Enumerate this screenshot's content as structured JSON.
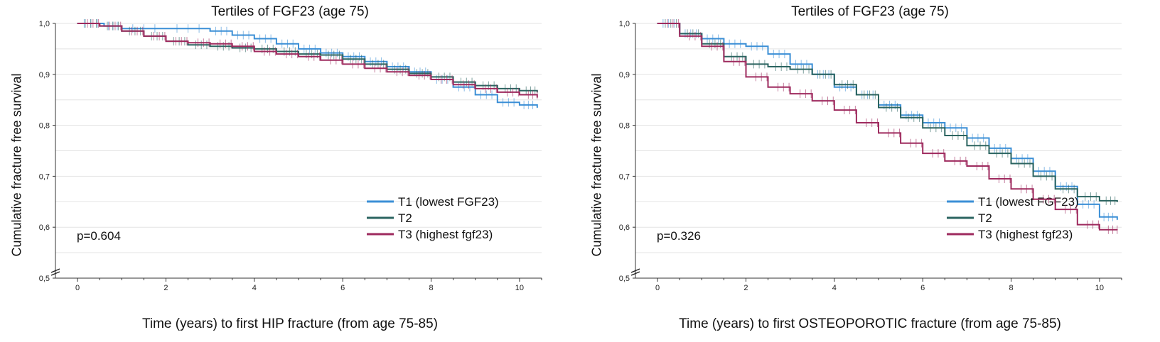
{
  "chart_data": [
    {
      "type": "line",
      "title": "Tertiles of FGF23 (age 75)",
      "xlabel": "Time (years) to first HIP fracture (from age 75-85)",
      "ylabel": "Cumulative fracture free survival",
      "xlim": [
        -0.5,
        10.5
      ],
      "ylim": [
        0.5,
        1.0
      ],
      "xticks": [
        0,
        2,
        4,
        6,
        8,
        10
      ],
      "yticks": [
        0.5,
        0.6,
        0.7,
        0.8,
        0.9,
        1.0
      ],
      "ytick_labels": [
        "0,5",
        "0,6",
        "0,7",
        "0,8",
        "0,9",
        "1,0"
      ],
      "axis_break": true,
      "grid": "horizontal",
      "legend_position": "bottom-right",
      "annotation": "p=0.604",
      "series": [
        {
          "name": "T1 (lowest FGF23)",
          "color": "#3b8fd6",
          "points": [
            [
              0,
              1.0
            ],
            [
              0.6,
              0.995
            ],
            [
              1.0,
              0.99
            ],
            [
              2.0,
              0.99
            ],
            [
              3.0,
              0.985
            ],
            [
              3.5,
              0.977
            ],
            [
              4.0,
              0.97
            ],
            [
              4.5,
              0.96
            ],
            [
              5.0,
              0.95
            ],
            [
              5.5,
              0.942
            ],
            [
              6.0,
              0.935
            ],
            [
              6.5,
              0.925
            ],
            [
              7.0,
              0.915
            ],
            [
              7.5,
              0.905
            ],
            [
              8.0,
              0.89
            ],
            [
              8.5,
              0.875
            ],
            [
              9.0,
              0.86
            ],
            [
              9.5,
              0.845
            ],
            [
              10.0,
              0.84
            ],
            [
              10.4,
              0.835
            ]
          ]
        },
        {
          "name": "T2",
          "color": "#2b6460",
          "points": [
            [
              0,
              1.0
            ],
            [
              0.5,
              0.995
            ],
            [
              1.0,
              0.985
            ],
            [
              1.5,
              0.975
            ],
            [
              2.0,
              0.965
            ],
            [
              2.5,
              0.958
            ],
            [
              3.0,
              0.955
            ],
            [
              3.5,
              0.952
            ],
            [
              4.0,
              0.95
            ],
            [
              4.5,
              0.945
            ],
            [
              5.0,
              0.94
            ],
            [
              5.5,
              0.938
            ],
            [
              6.0,
              0.93
            ],
            [
              6.5,
              0.92
            ],
            [
              7.0,
              0.91
            ],
            [
              7.5,
              0.902
            ],
            [
              8.0,
              0.895
            ],
            [
              8.5,
              0.885
            ],
            [
              9.0,
              0.878
            ],
            [
              9.5,
              0.872
            ],
            [
              10.0,
              0.868
            ],
            [
              10.4,
              0.865
            ]
          ]
        },
        {
          "name": "T3 (highest fgf23)",
          "color": "#9e2a5e",
          "points": [
            [
              0,
              1.0
            ],
            [
              0.5,
              0.995
            ],
            [
              1.0,
              0.985
            ],
            [
              1.5,
              0.975
            ],
            [
              2.0,
              0.965
            ],
            [
              2.5,
              0.962
            ],
            [
              3.0,
              0.96
            ],
            [
              3.5,
              0.955
            ],
            [
              4.0,
              0.945
            ],
            [
              4.5,
              0.94
            ],
            [
              5.0,
              0.935
            ],
            [
              5.5,
              0.928
            ],
            [
              6.0,
              0.92
            ],
            [
              6.5,
              0.912
            ],
            [
              7.0,
              0.905
            ],
            [
              7.5,
              0.898
            ],
            [
              8.0,
              0.89
            ],
            [
              8.5,
              0.88
            ],
            [
              9.0,
              0.872
            ],
            [
              9.5,
              0.865
            ],
            [
              10.0,
              0.86
            ],
            [
              10.4,
              0.855
            ]
          ]
        }
      ]
    },
    {
      "type": "line",
      "title": "Tertiles of FGF23 (age 75)",
      "xlabel": "Time (years) to first OSTEOPOROTIC fracture (from age 75-85)",
      "ylabel": "Cumulative fracture free survival",
      "xlim": [
        -0.5,
        10.5
      ],
      "ylim": [
        0.5,
        1.0
      ],
      "xticks": [
        0,
        2,
        4,
        6,
        8,
        10
      ],
      "yticks": [
        0.5,
        0.6,
        0.7,
        0.8,
        0.9,
        1.0
      ],
      "ytick_labels": [
        "0,5",
        "0,6",
        "0,7",
        "0,8",
        "0,9",
        "1,0"
      ],
      "axis_break": true,
      "grid": "horizontal",
      "legend_position": "bottom-right",
      "annotation": "p=0.326",
      "series": [
        {
          "name": "T1 (lowest FGF23)",
          "color": "#3b8fd6",
          "points": [
            [
              0,
              1.0
            ],
            [
              0.5,
              0.98
            ],
            [
              1.0,
              0.97
            ],
            [
              1.5,
              0.96
            ],
            [
              2.0,
              0.955
            ],
            [
              2.5,
              0.94
            ],
            [
              3.0,
              0.92
            ],
            [
              3.5,
              0.9
            ],
            [
              4.0,
              0.875
            ],
            [
              4.5,
              0.86
            ],
            [
              5.0,
              0.84
            ],
            [
              5.5,
              0.82
            ],
            [
              6.0,
              0.805
            ],
            [
              6.5,
              0.795
            ],
            [
              7.0,
              0.775
            ],
            [
              7.5,
              0.755
            ],
            [
              8.0,
              0.735
            ],
            [
              8.5,
              0.71
            ],
            [
              9.0,
              0.68
            ],
            [
              9.5,
              0.645
            ],
            [
              10.0,
              0.62
            ],
            [
              10.4,
              0.615
            ]
          ]
        },
        {
          "name": "T2",
          "color": "#2b6460",
          "points": [
            [
              0,
              1.0
            ],
            [
              0.5,
              0.98
            ],
            [
              1.0,
              0.96
            ],
            [
              1.5,
              0.935
            ],
            [
              2.0,
              0.92
            ],
            [
              2.5,
              0.915
            ],
            [
              3.0,
              0.91
            ],
            [
              3.5,
              0.9
            ],
            [
              4.0,
              0.88
            ],
            [
              4.5,
              0.86
            ],
            [
              5.0,
              0.835
            ],
            [
              5.5,
              0.815
            ],
            [
              6.0,
              0.795
            ],
            [
              6.5,
              0.78
            ],
            [
              7.0,
              0.76
            ],
            [
              7.5,
              0.745
            ],
            [
              8.0,
              0.725
            ],
            [
              8.5,
              0.7
            ],
            [
              9.0,
              0.675
            ],
            [
              9.5,
              0.66
            ],
            [
              10.0,
              0.652
            ],
            [
              10.4,
              0.65
            ]
          ]
        },
        {
          "name": "T3 (highest fgf23)",
          "color": "#9e2a5e",
          "points": [
            [
              0,
              1.0
            ],
            [
              0.5,
              0.975
            ],
            [
              1.0,
              0.955
            ],
            [
              1.5,
              0.925
            ],
            [
              2.0,
              0.895
            ],
            [
              2.5,
              0.875
            ],
            [
              3.0,
              0.862
            ],
            [
              3.5,
              0.848
            ],
            [
              4.0,
              0.83
            ],
            [
              4.5,
              0.805
            ],
            [
              5.0,
              0.785
            ],
            [
              5.5,
              0.765
            ],
            [
              6.0,
              0.745
            ],
            [
              6.5,
              0.73
            ],
            [
              7.0,
              0.72
            ],
            [
              7.5,
              0.695
            ],
            [
              8.0,
              0.675
            ],
            [
              8.5,
              0.655
            ],
            [
              9.0,
              0.635
            ],
            [
              9.5,
              0.605
            ],
            [
              10.0,
              0.595
            ],
            [
              10.4,
              0.595
            ]
          ]
        }
      ]
    }
  ]
}
